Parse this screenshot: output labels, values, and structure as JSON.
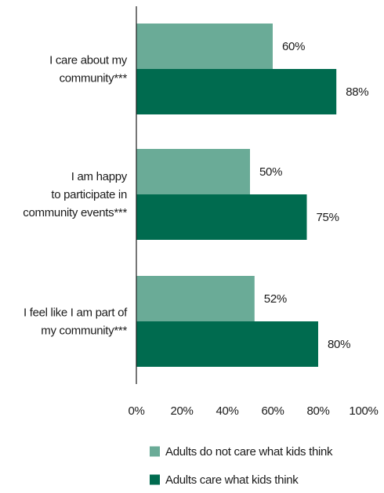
{
  "chart_data": {
    "type": "bar",
    "orientation": "horizontal",
    "categories": [
      [
        "I care about my",
        "community***"
      ],
      [
        "I am happy",
        "to participate in",
        "community events***"
      ],
      [
        "I feel like I am part of",
        "my community***"
      ]
    ],
    "series": [
      {
        "name": "Adults do not care what kids think",
        "values": [
          60,
          50,
          52
        ],
        "color": "#6aab97"
      },
      {
        "name": "Adults care what kids think",
        "values": [
          88,
          75,
          80
        ],
        "color": "#006b4f"
      }
    ],
    "value_suffix": "%",
    "xlim": [
      0,
      100
    ],
    "xticks": [
      0,
      20,
      40,
      60,
      80,
      100
    ],
    "grid": false,
    "legend_position": "bottom"
  }
}
